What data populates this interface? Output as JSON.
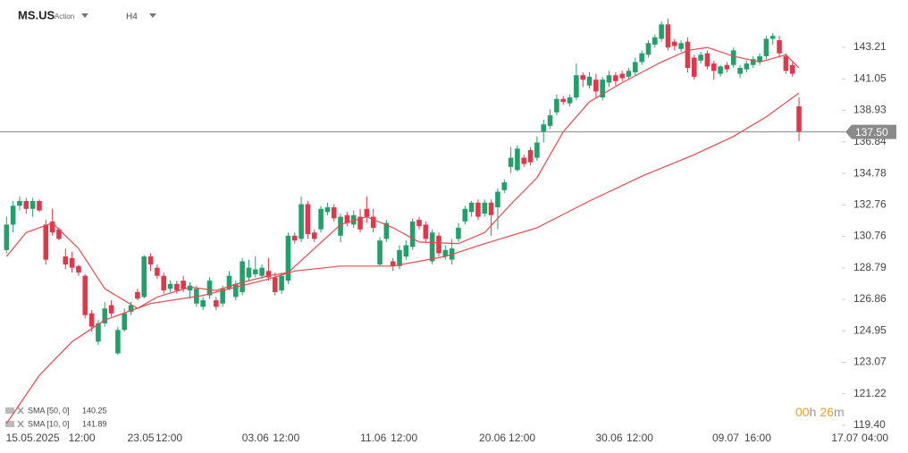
{
  "header": {
    "symbol": "MS.US",
    "asset_type": "Action",
    "timeframe": "H4"
  },
  "indicators": [
    {
      "name": "SMA [50, 0]",
      "value": 140.25
    },
    {
      "name": "SMA [10, 0]",
      "value": 141.89
    }
  ],
  "countdown": {
    "hours": "00",
    "hours_unit": "h",
    "minutes": "26",
    "minutes_unit": "m"
  },
  "chart_data": {
    "type": "candlestick",
    "log_scale": true,
    "up_color": "#22a06b",
    "down_color": "#e0374a",
    "ylim": [
      119.19,
      146.51
    ],
    "xlim": [
      -1,
      127
    ],
    "yticks": [
      143.21,
      141.05,
      138.93,
      136.84,
      134.78,
      132.76,
      130.76,
      128.79,
      126.86,
      124.95,
      123.07,
      121.22,
      {
        "value": 119.4,
        "label": "119.40"
      }
    ],
    "last_price": {
      "value": 137.5,
      "label": "137.50"
    },
    "xticks": [
      {
        "value": 4,
        "label": "15.05.2025"
      },
      {
        "value": 11.5,
        "label": "12:00"
      },
      {
        "value": 20.5,
        "label": "23.05"
      },
      {
        "value": 24.8,
        "label": "12:00"
      },
      {
        "value": 38,
        "label": "03.06"
      },
      {
        "value": 42.7,
        "label": "12:00"
      },
      {
        "value": 56,
        "label": "11.06"
      },
      {
        "value": 60.7,
        "label": "12:00"
      },
      {
        "value": 74.2,
        "label": "20.06"
      },
      {
        "value": 78.7,
        "label": "12:00"
      },
      {
        "value": 92,
        "label": "30.06"
      },
      {
        "value": 96.7,
        "label": "12:00"
      },
      {
        "value": 109.8,
        "label": "09.07"
      },
      {
        "value": 114.7,
        "label": "16:00"
      },
      {
        "value": 128,
        "label": "17.07"
      },
      {
        "value": 132.6,
        "label": "04:00"
      }
    ],
    "open": [
      129.9,
      131.5,
      132.7,
      133.0,
      132.5,
      133.0,
      131.5,
      131.7,
      131.2,
      129.5,
      129.4,
      128.9,
      128.3,
      126.0,
      124.3,
      125.4,
      126.5,
      123.6,
      125.0,
      126.1,
      127.3,
      127.0,
      129.5,
      128.8,
      128.3,
      127.5,
      127.8,
      128.0,
      127.4,
      126.6,
      126.4,
      127.1,
      126.8,
      126.6,
      127.5,
      127.0,
      127.3,
      128.2,
      128.4,
      128.3,
      128.6,
      128.2,
      127.4,
      128.0,
      130.8,
      130.6,
      132.8,
      131.0,
      131.2,
      132.3,
      132.6,
      130.8,
      132.1,
      131.5,
      132.0,
      132.5,
      132.0,
      129.0,
      130.6,
      129.2,
      128.9,
      129.5,
      130.1,
      131.8,
      131.5,
      129.2,
      130.8,
      129.5,
      129.3,
      130.6,
      131.7,
      132.3,
      132.9,
      132.2,
      132.9,
      132.6,
      133.7,
      135.2,
      135.0,
      135.8,
      136.3,
      135.8,
      137.5,
      137.9,
      138.8,
      139.7,
      139.4,
      139.8,
      141.3,
      140.6,
      141.0,
      139.8,
      140.8,
      141.3,
      141.4,
      141.2,
      141.5,
      142.2,
      142.7,
      143.4,
      143.8,
      144.8,
      143.6,
      143.1,
      143.6,
      142.5,
      142.3,
      142.8,
      142.1,
      141.4,
      142.0,
      142.0,
      141.4,
      141.7,
      142.0,
      142.2,
      142.6,
      143.8,
      143.7,
      142.6,
      142.0,
      139.2
    ],
    "high": [
      132.0,
      133.0,
      133.3,
      133.2,
      133.2,
      133.1,
      131.8,
      132.5,
      131.3,
      130.0,
      129.8,
      129.0,
      128.4,
      126.2,
      125.6,
      126.7,
      126.8,
      125.2,
      126.3,
      126.7,
      127.5,
      129.6,
      129.7,
      129.0,
      128.5,
      128.0,
      128.0,
      128.3,
      127.9,
      127.7,
      127.0,
      128.2,
      127.0,
      127.7,
      128.6,
      128.0,
      129.4,
      129.3,
      129.5,
      129.0,
      129.4,
      128.5,
      128.5,
      131.0,
      131.0,
      133.3,
      133.0,
      131.2,
      132.7,
      132.9,
      132.8,
      132.2,
      132.3,
      132.4,
      132.5,
      133.3,
      132.5,
      130.7,
      131.8,
      129.4,
      130.2,
      130.5,
      131.9,
      132.0,
      131.7,
      131.2,
      131.0,
      130.2,
      130.6,
      131.6,
      132.7,
      133.0,
      133.1,
      133.1,
      133.1,
      133.8,
      134.4,
      136.5,
      136.6,
      136.0,
      136.5,
      137.2,
      138.3,
      139.0,
      140.0,
      139.9,
      140.0,
      142.1,
      141.5,
      141.5,
      141.4,
      141.2,
      141.6,
      141.5,
      141.6,
      141.8,
      142.5,
      143.0,
      143.7,
      144.1,
      145.0,
      145.2,
      143.8,
      143.7,
      143.9,
      142.7,
      142.9,
      143.0,
      142.3,
      142.0,
      142.2,
      143.2,
      142.0,
      142.3,
      142.6,
      142.8,
      144.0,
      144.2,
      144.0,
      142.8,
      142.2,
      139.8
    ],
    "low": [
      129.7,
      131.0,
      132.4,
      132.2,
      132.0,
      132.3,
      129.0,
      130.8,
      130.5,
      128.7,
      128.5,
      128.3,
      125.7,
      124.9,
      124.1,
      125.2,
      125.8,
      123.5,
      124.9,
      125.9,
      126.8,
      126.9,
      128.6,
      128.1,
      127.2,
      127.3,
      127.2,
      127.3,
      126.9,
      126.4,
      126.2,
      126.9,
      126.2,
      126.4,
      127.4,
      126.8,
      127.1,
      128.0,
      128.2,
      128.1,
      128.0,
      127.1,
      127.2,
      127.8,
      130.3,
      130.4,
      130.6,
      130.4,
      131.0,
      132.1,
      131.7,
      130.4,
      131.4,
      131.3,
      131.0,
      131.6,
      131.0,
      128.9,
      130.4,
      128.6,
      128.7,
      129.3,
      129.9,
      131.2,
      130.4,
      129.0,
      129.5,
      129.3,
      129.0,
      130.4,
      131.5,
      132.0,
      131.8,
      132.0,
      130.8,
      131.2,
      133.5,
      134.8,
      134.9,
      135.2,
      135.3,
      135.6,
      136.8,
      137.7,
      138.6,
      139.3,
      139.2,
      139.6,
      140.5,
      140.4,
      139.8,
      139.6,
      140.5,
      140.6,
      140.9,
      141.0,
      141.3,
      142.0,
      142.5,
      143.2,
      143.6,
      143.0,
      143.0,
      142.9,
      141.5,
      141.0,
      142.1,
      141.7,
      141.0,
      141.2,
      141.5,
      141.8,
      141.1,
      141.5,
      141.8,
      142.0,
      142.4,
      143.4,
      142.5,
      141.4,
      141.2,
      136.9
    ],
    "close": [
      131.5,
      132.7,
      133.0,
      132.5,
      133.0,
      132.4,
      129.3,
      131.0,
      130.6,
      129.0,
      128.8,
      128.5,
      125.9,
      125.2,
      125.4,
      126.3,
      126.0,
      125.0,
      126.0,
      126.5,
      126.9,
      129.5,
      129.0,
      128.3,
      127.4,
      127.8,
      127.4,
      127.5,
      127.7,
      127.5,
      126.8,
      128.0,
      126.4,
      127.5,
      128.3,
      127.8,
      129.2,
      128.8,
      128.7,
      128.8,
      128.2,
      127.3,
      128.3,
      130.8,
      130.5,
      132.8,
      130.9,
      130.6,
      132.5,
      132.6,
      131.9,
      132.0,
      131.6,
      132.1,
      131.2,
      132.0,
      131.3,
      130.5,
      131.6,
      128.9,
      129.9,
      130.2,
      131.7,
      131.4,
      130.6,
      131.0,
      129.7,
      129.9,
      130.0,
      131.3,
      132.5,
      132.9,
      132.0,
      132.9,
      132.1,
      133.6,
      134.2,
      135.8,
      136.4,
      135.4,
      135.5,
      136.8,
      138.0,
      138.6,
      139.7,
      139.5,
      139.8,
      141.3,
      141.0,
      141.2,
      140.2,
      141.0,
      141.3,
      140.9,
      141.1,
      141.6,
      142.2,
      142.8,
      143.5,
      143.9,
      144.8,
      143.2,
      143.3,
      143.5,
      141.8,
      141.2,
      142.7,
      141.9,
      141.6,
      141.9,
      141.7,
      143.0,
      141.8,
      142.1,
      142.4,
      142.6,
      143.8,
      144.0,
      142.8,
      141.6,
      141.4,
      137.5
    ],
    "lines": [
      {
        "name": "SMA [50, 0]",
        "color": "#e5484d",
        "x": [
          0,
          5,
          10,
          15,
          22,
          30,
          40,
          44,
          51,
          59,
          67,
          73,
          81,
          89,
          97,
          105,
          111,
          116,
          121
        ],
        "values": [
          119.5,
          122.3,
          124.3,
          125.6,
          126.6,
          127.1,
          128.1,
          128.6,
          128.9,
          128.9,
          129.5,
          130.3,
          131.3,
          133.0,
          134.6,
          136.0,
          137.2,
          138.5,
          140.1
        ]
      },
      {
        "name": "SMA [10, 0]",
        "color": "#e5484d",
        "x": [
          0,
          3,
          7,
          11,
          15,
          20,
          23,
          28,
          32,
          36,
          40,
          43,
          47,
          51,
          55,
          59,
          63,
          69,
          73,
          77,
          81,
          85,
          89,
          94,
          100,
          104,
          107,
          111,
          115,
          119,
          121
        ],
        "values": [
          129.5,
          131.0,
          131.6,
          130.0,
          127.5,
          126.3,
          127.0,
          127.6,
          127.4,
          127.9,
          128.3,
          128.5,
          130.0,
          131.5,
          132.0,
          131.3,
          130.4,
          130.3,
          131.0,
          132.8,
          134.5,
          137.5,
          139.5,
          140.8,
          142.2,
          143.0,
          143.2,
          142.6,
          142.2,
          142.7,
          141.8
        ]
      }
    ]
  }
}
